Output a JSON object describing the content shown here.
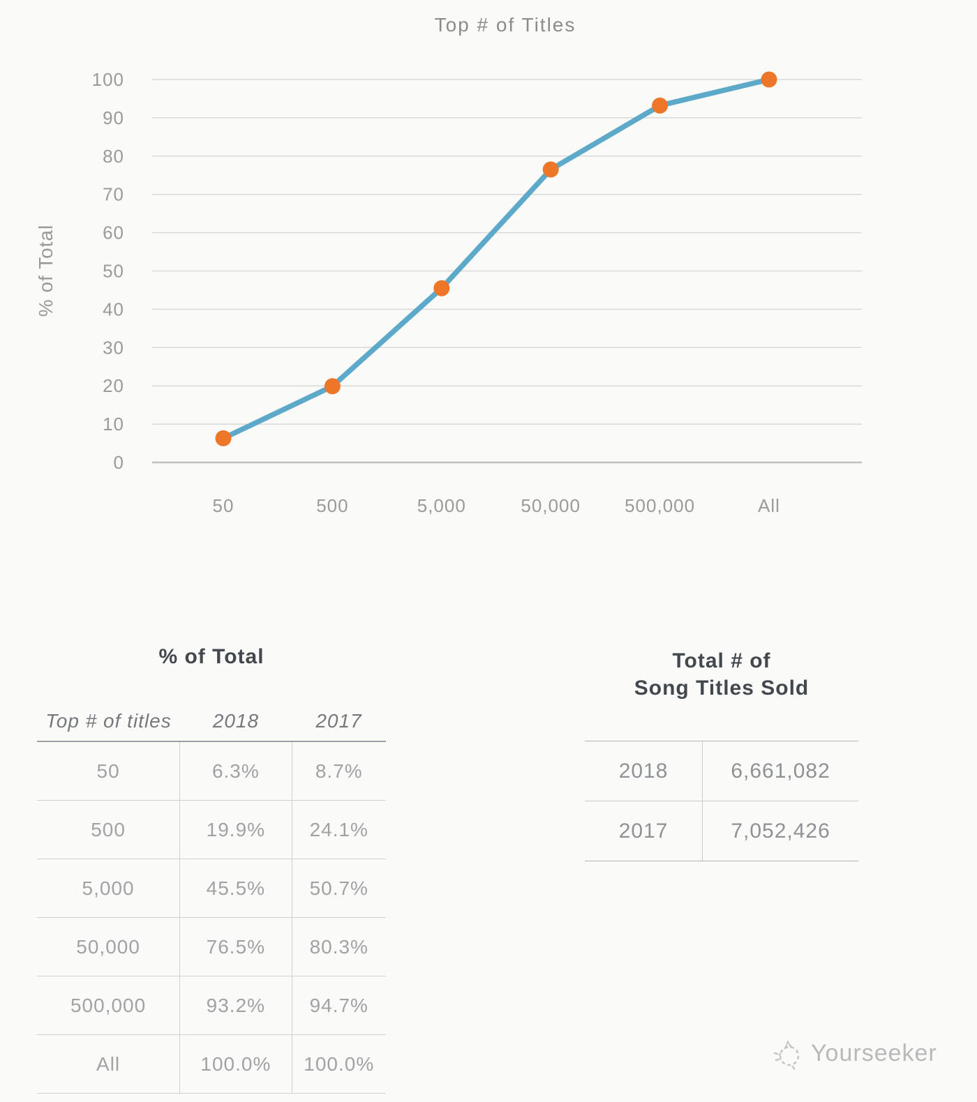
{
  "chart_data": {
    "type": "line",
    "title": "Top # of Titles",
    "xlabel": "",
    "ylabel": "% of Total",
    "categories": [
      "50",
      "500",
      "5,000",
      "50,000",
      "500,000",
      "All"
    ],
    "series": [
      {
        "name": "2018",
        "values": [
          6.3,
          19.9,
          45.5,
          76.5,
          93.2,
          100.0
        ]
      }
    ],
    "ylim": [
      0,
      100
    ],
    "y_ticks": [
      0,
      10,
      20,
      30,
      40,
      50,
      60,
      70,
      80,
      90,
      100
    ],
    "grid": true,
    "legend": false,
    "line_color": "#5da9c9",
    "marker_color": "#ee7628",
    "grid_color": "#d9d9d9",
    "axis_line_color": "#bfbfbf",
    "text_color": "#9a9a9a",
    "title_color": "#8c8c8c"
  },
  "tables": {
    "percent_of_total": {
      "title": "% of Total",
      "columns": [
        "Top # of titles",
        "2018",
        "2017"
      ],
      "rows": [
        [
          "50",
          "6.3%",
          "8.7%"
        ],
        [
          "500",
          "19.9%",
          "24.1%"
        ],
        [
          "5,000",
          "45.5%",
          "50.7%"
        ],
        [
          "50,000",
          "76.5%",
          "80.3%"
        ],
        [
          "500,000",
          "93.2%",
          "94.7%"
        ],
        [
          "All",
          "100.0%",
          "100.0%"
        ]
      ]
    },
    "totals": {
      "title_line1": "Total # of",
      "title_line2": "Song Titles Sold",
      "rows": [
        [
          "2018",
          "6,661,082"
        ],
        [
          "2017",
          "7,052,426"
        ]
      ]
    }
  },
  "watermark": {
    "text": "Yourseeker",
    "color": "#b9b9b9"
  }
}
